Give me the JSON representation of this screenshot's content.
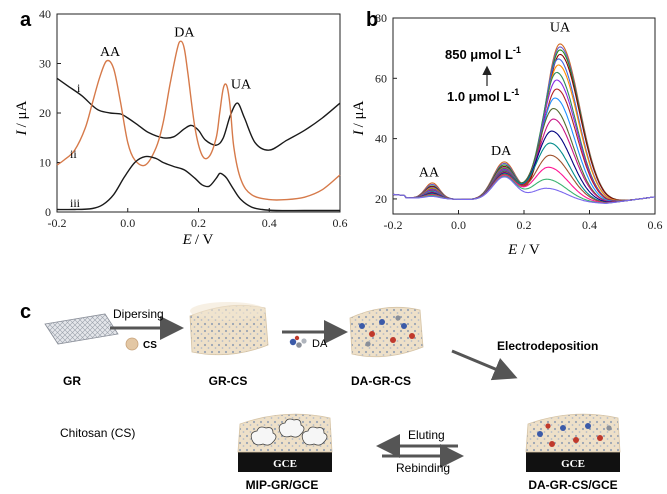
{
  "chart_data": [
    {
      "panel": "a",
      "type": "line",
      "xlabel_var": "E",
      "xlabel_unit": "/ V",
      "ylabel_var": "I",
      "ylabel_unit": "/ μA",
      "xlim": [
        -0.2,
        0.6
      ],
      "ylim": [
        0,
        40
      ],
      "xticks": [
        -0.2,
        0.0,
        0.2,
        0.4,
        0.6
      ],
      "xtick_labels": [
        "-0.2",
        "0.0",
        "0.2",
        "0.4",
        "0.6"
      ],
      "yticks": [
        0,
        10,
        20,
        30,
        40
      ],
      "grid": false,
      "peak_labels": [
        {
          "text": "AA",
          "x": -0.05,
          "y": 31.5
        },
        {
          "text": "DA",
          "x": 0.16,
          "y": 35.5
        },
        {
          "text": "UA",
          "x": 0.32,
          "y": 25.0
        }
      ],
      "series": [
        {
          "name": "i",
          "color": "#1a1a1a",
          "x": [
            -0.2,
            -0.17,
            -0.13,
            -0.1,
            -0.08,
            -0.05,
            -0.02,
            0.0,
            0.03,
            0.06,
            0.1,
            0.13,
            0.16,
            0.18,
            0.2,
            0.22,
            0.25,
            0.27,
            0.29,
            0.31,
            0.33,
            0.36,
            0.4,
            0.45,
            0.5,
            0.55,
            0.6
          ],
          "y": [
            27,
            25.5,
            23.5,
            21.5,
            20.5,
            20.0,
            19.8,
            19.0,
            17.5,
            16.0,
            15.0,
            15.2,
            16.8,
            17.5,
            16.5,
            14.5,
            13.5,
            15.0,
            19.5,
            22.0,
            19.0,
            14.0,
            12.5,
            14.5,
            16.5,
            19.0,
            22.0
          ]
        },
        {
          "name": "ii",
          "color": "#d67a4a",
          "x": [
            -0.2,
            -0.18,
            -0.15,
            -0.12,
            -0.1,
            -0.08,
            -0.06,
            -0.04,
            -0.02,
            0.0,
            0.02,
            0.05,
            0.08,
            0.1,
            0.12,
            0.14,
            0.15,
            0.16,
            0.17,
            0.19,
            0.21,
            0.23,
            0.25,
            0.26,
            0.27,
            0.28,
            0.29,
            0.3,
            0.32,
            0.35,
            0.4,
            0.45,
            0.5,
            0.55,
            0.6
          ],
          "y": [
            9.5,
            10.5,
            12.5,
            17,
            22,
            27,
            30.5,
            29,
            22,
            14,
            10.5,
            9.5,
            13,
            18,
            26,
            33,
            34.5,
            33,
            28,
            17,
            11.5,
            11.2,
            15,
            20,
            25,
            25.5,
            21,
            13,
            6.5,
            3.5,
            2.5,
            2.5,
            3.0,
            4.5,
            7.5
          ]
        },
        {
          "name": "iii",
          "color": "#1a1a1a",
          "x": [
            -0.2,
            -0.15,
            -0.1,
            -0.07,
            -0.04,
            -0.01,
            0.02,
            0.05,
            0.08,
            0.1,
            0.13,
            0.16,
            0.19,
            0.21,
            0.23,
            0.25,
            0.26,
            0.27,
            0.28,
            0.3,
            0.32,
            0.35,
            0.38,
            0.42,
            0.5,
            0.6
          ],
          "y": [
            0.5,
            0.5,
            0.7,
            1.5,
            3.5,
            7.0,
            10.0,
            11.2,
            10.8,
            10.0,
            9.2,
            8.5,
            6.8,
            5.5,
            5.2,
            6.8,
            7.8,
            7.5,
            6.8,
            4.5,
            2.5,
            1.0,
            0.5,
            0.3,
            0.3,
            0.3
          ]
        }
      ]
    },
    {
      "panel": "b",
      "type": "line",
      "xlabel_var": "E",
      "xlabel_unit": "/ V",
      "ylabel_var": "I",
      "ylabel_unit": "/ μA",
      "xlim": [
        -0.2,
        0.6
      ],
      "ylim": [
        15,
        80
      ],
      "xticks": [
        -0.2,
        0.0,
        0.2,
        0.4,
        0.6
      ],
      "xtick_labels": [
        "-0.2",
        "0.0",
        "0.2",
        "0.4",
        "0.6"
      ],
      "yticks": [
        20,
        40,
        60,
        80
      ],
      "grid": false,
      "peak_labels": [
        {
          "text": "AA",
          "x": -0.09,
          "y": 27.5
        },
        {
          "text": "DA",
          "x": 0.13,
          "y": 34.5
        },
        {
          "text": "UA",
          "x": 0.31,
          "y": 75.5
        }
      ],
      "annotation_top": "850 μmol L",
      "annotation_bottom": "1.0 μmol L",
      "annotation_exponent": "-1",
      "aa_x": -0.08,
      "aa_heights": [
        26,
        25.5,
        25,
        24.8,
        24.5,
        24.3,
        24,
        23.8,
        23.5,
        23.3,
        23,
        22.8,
        22.6,
        22.4,
        22.2,
        22,
        21.8,
        21.5
      ],
      "da_x": 0.14,
      "da_heights": [
        33,
        32.5,
        32,
        31.5,
        31.2,
        31,
        30.8,
        30.5,
        30.2,
        30,
        29.8,
        29.5,
        29.2,
        29,
        28.8,
        28.5,
        28.2,
        28
      ],
      "ua_x": [
        0.31,
        0.31,
        0.31,
        0.31,
        0.305,
        0.305,
        0.3,
        0.3,
        0.3,
        0.295,
        0.29,
        0.29,
        0.285,
        0.28,
        0.28,
        0.275,
        0.27,
        0.27
      ],
      "ua_heights": [
        72,
        71,
        70,
        68.5,
        67,
        65,
        62.5,
        60,
        57,
        54,
        50.5,
        47,
        43,
        39,
        35,
        31,
        27,
        24
      ],
      "colors": [
        "#d2691e",
        "#6a5acd",
        "#228b22",
        "#8b0000",
        "#4169e1",
        "#ff8c00",
        "#2e8b57",
        "#8a2be2",
        "#b22222",
        "#1e90ff",
        "#556b2f",
        "#c71585",
        "#000080",
        "#008b8b",
        "#a0522d",
        "#ff1493",
        "#3cb371",
        "#7b68ee"
      ]
    }
  ],
  "panel_c": {
    "letter": "c",
    "labels": {
      "gr": "GR",
      "gr_cs": "GR-CS",
      "da_gr_cs": "DA-GR-CS",
      "chitosan": "Chitosan (CS)",
      "mip": "MIP-GR/GCE",
      "da_gr_cs_gce": "DA-GR-CS/GCE",
      "cs_bead": "CS",
      "da_arrow": "DA",
      "dispersing": "Dipersing",
      "electrodeposition": "Electrodeposition",
      "eluting": "Eluting",
      "rebinding": "Rebinding",
      "gce_left": "GCE",
      "gce_right": "GCE"
    }
  },
  "panel_labels": {
    "a": "a",
    "b": "b"
  },
  "series_labels": {
    "i": "i",
    "ii": "ii",
    "iii": "iii"
  }
}
